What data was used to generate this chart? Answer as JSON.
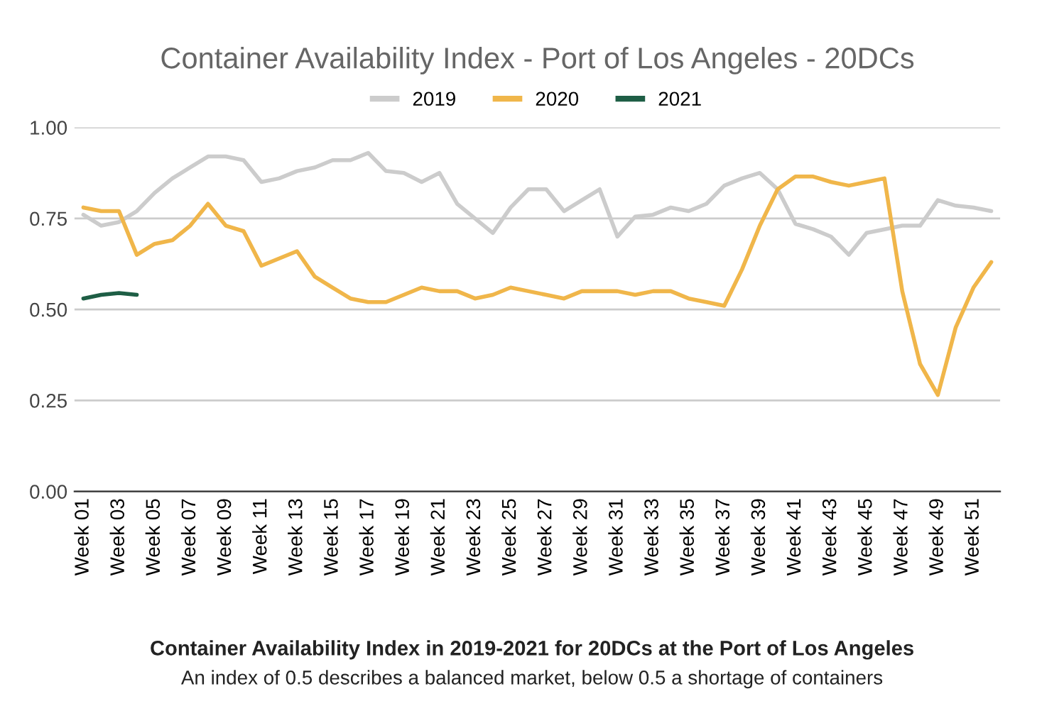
{
  "chart_data": {
    "type": "line",
    "title": "Container Availability Index - Port of Los Angeles - 20DCs",
    "categories": [
      "Week 01",
      null,
      "Week 03",
      null,
      "Week 05",
      null,
      "Week 07",
      null,
      "Week 09",
      null,
      "Week 11",
      null,
      "Week 13",
      null,
      "Week 15",
      null,
      "Week 17",
      null,
      "Week 19",
      null,
      "Week 21",
      null,
      "Week 23",
      null,
      "Week 25",
      null,
      "Week 27",
      null,
      "Week 29",
      null,
      "Week 31",
      null,
      "Week 33",
      null,
      "Week 35",
      null,
      "Week 37",
      null,
      "Week 39",
      null,
      "Week 41",
      null,
      "Week 43",
      null,
      "Week 45",
      null,
      "Week 47",
      null,
      "Week 49",
      null,
      "Week 51",
      null
    ],
    "series": [
      {
        "name": "2019",
        "color": "#cccccc",
        "values": [
          0.76,
          0.73,
          0.74,
          0.77,
          0.82,
          0.86,
          0.89,
          0.92,
          0.92,
          0.91,
          0.85,
          0.86,
          0.88,
          0.89,
          0.91,
          0.91,
          0.93,
          0.88,
          0.875,
          0.85,
          0.875,
          0.79,
          0.75,
          0.71,
          0.78,
          0.83,
          0.83,
          0.77,
          0.8,
          0.83,
          0.7,
          0.755,
          0.76,
          0.78,
          0.77,
          0.79,
          0.84,
          0.86,
          0.875,
          0.83,
          0.735,
          0.72,
          0.7,
          0.65,
          0.71,
          0.72,
          0.73,
          0.73,
          0.8,
          0.785,
          0.78,
          0.77
        ]
      },
      {
        "name": "2020",
        "color": "#f0b64a",
        "values": [
          0.78,
          0.77,
          0.77,
          0.65,
          0.68,
          0.69,
          0.73,
          0.79,
          0.73,
          0.715,
          0.62,
          0.64,
          0.66,
          0.59,
          0.56,
          0.53,
          0.52,
          0.52,
          0.54,
          0.56,
          0.55,
          0.55,
          0.53,
          0.54,
          0.56,
          0.55,
          0.54,
          0.53,
          0.55,
          0.55,
          0.55,
          0.54,
          0.55,
          0.55,
          0.53,
          0.52,
          0.51,
          0.61,
          0.73,
          0.83,
          0.865,
          0.865,
          0.85,
          0.84,
          0.85,
          0.86,
          0.55,
          0.35,
          0.265,
          0.45,
          0.56,
          0.63
        ]
      },
      {
        "name": "2021",
        "color": "#1e5e45",
        "values": [
          0.53,
          0.54,
          0.545,
          0.54,
          null,
          null,
          null,
          null,
          null,
          null,
          null,
          null,
          null,
          null,
          null,
          null,
          null,
          null,
          null,
          null,
          null,
          null,
          null,
          null,
          null,
          null,
          null,
          null,
          null,
          null,
          null,
          null,
          null,
          null,
          null,
          null,
          null,
          null,
          null,
          null,
          null,
          null,
          null,
          null,
          null,
          null,
          null,
          null,
          null,
          null,
          null,
          null
        ]
      }
    ],
    "ylim": [
      0,
      1
    ],
    "yticks": [
      {
        "value": 0,
        "label": "0.00"
      },
      {
        "value": 0.25,
        "label": "0.25"
      },
      {
        "value": 0.5,
        "label": "0.50"
      },
      {
        "value": 0.75,
        "label": "0.75"
      },
      {
        "value": 1,
        "label": "1.00"
      }
    ],
    "grid": "y",
    "legend": "top",
    "marker": "none",
    "line_style": "solid",
    "annotations": [
      "Container Availability Index in 2019-2021 for 20DCs at the Port of Los Angeles",
      "An index of 0.5 describes a balanced market, below 0.5 a shortage of containers"
    ]
  }
}
